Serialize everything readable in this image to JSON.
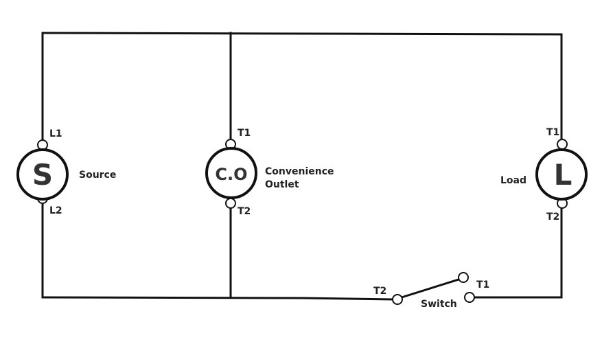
{
  "colors": {
    "wire": "#111111",
    "background": "#ffffff",
    "text": "#222222"
  },
  "source": {
    "symbol": "S",
    "name": "Source",
    "top_terminal": "L1",
    "bottom_terminal": "L2"
  },
  "outlet": {
    "symbol": "C.O",
    "name_line1": "Convenience",
    "name_line2": "Outlet",
    "top_terminal": "T1",
    "bottom_terminal": "T2"
  },
  "load": {
    "symbol": "L",
    "name": "Load",
    "top_terminal": "T1",
    "bottom_terminal": "T2"
  },
  "switch": {
    "name": "Switch",
    "left_terminal": "T2",
    "right_terminal": "T1"
  }
}
